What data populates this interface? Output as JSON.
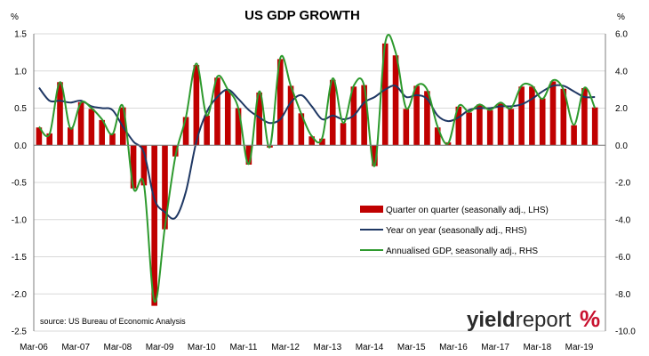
{
  "chart_data": {
    "type": "bar",
    "title": "US GDP GROWTH",
    "left_unit": "%",
    "right_unit": "%",
    "x_ticks": [
      "Mar-06",
      "Mar-07",
      "Mar-08",
      "Mar-09",
      "Mar-10",
      "Mar-11",
      "Mar-12",
      "Mar-13",
      "Mar-14",
      "Mar-15",
      "Mar-16",
      "Mar-17",
      "Mar-18",
      "Mar-19"
    ],
    "x_start_quarter": "Mar-06",
    "ylim_left": [
      -2.5,
      1.5
    ],
    "yticks_left": [
      "1.5",
      "1.0",
      "0.5",
      "0.0",
      "-0.5",
      "-1.0",
      "-1.5",
      "-2.0",
      "-2.5"
    ],
    "ylim_right": [
      -10.0,
      6.0
    ],
    "yticks_right": [
      "6.0",
      "4.0",
      "2.0",
      "0.0",
      "-2.0",
      "-4.0",
      "-6.0",
      "-8.0",
      "-10.0"
    ],
    "grid": "horizontal",
    "legend_placement": "center-right",
    "source": "source: US Bureau of Economic Analysis",
    "logo": {
      "part1": "yield",
      "part2": "report",
      "pct": "%",
      "pct_color": "#c8102e"
    },
    "colors": {
      "bar": "#c00000",
      "yoy": "#1f3864",
      "annualised": "#2e9a2e",
      "grid": "#d9d9d9"
    },
    "series": [
      {
        "name": "Quarter on quarter (seasonally adj., LHS)",
        "axis": "left",
        "kind": "bar",
        "values": [
          0.24,
          0.16,
          0.85,
          0.24,
          0.58,
          0.49,
          0.34,
          0.16,
          0.51,
          -0.58,
          -0.54,
          -2.16,
          -1.13,
          -0.15,
          0.38,
          1.08,
          0.4,
          0.91,
          0.74,
          0.5,
          -0.26,
          0.71,
          -0.03,
          1.16,
          0.8,
          0.43,
          0.12,
          0.09,
          0.88,
          0.3,
          0.79,
          0.81,
          -0.28,
          1.37,
          1.21,
          0.49,
          0.8,
          0.73,
          0.24,
          0.04,
          0.52,
          0.44,
          0.55,
          0.47,
          0.56,
          0.49,
          0.79,
          0.79,
          0.63,
          0.86,
          0.76,
          0.27,
          0.77,
          0.51
        ]
      },
      {
        "name": "Year on year (seasonally adj., RHS)",
        "axis": "right",
        "kind": "line",
        "values": [
          3.1,
          2.4,
          2.4,
          2.3,
          2.4,
          2.1,
          2.0,
          1.9,
          1.0,
          0.2,
          -0.4,
          -2.9,
          -3.6,
          -3.9,
          -2.5,
          0.2,
          1.8,
          2.6,
          3.0,
          2.5,
          1.9,
          1.5,
          1.2,
          1.4,
          2.3,
          2.7,
          2.1,
          1.4,
          1.6,
          1.4,
          1.6,
          2.3,
          2.6,
          3.0,
          3.2,
          2.6,
          2.7,
          2.5,
          1.6,
          1.3,
          1.5,
          1.9,
          2.0,
          2.0,
          2.1,
          2.1,
          2.2,
          2.5,
          2.9,
          3.2,
          3.2,
          2.9,
          2.6,
          2.6
        ]
      },
      {
        "name": "Annualised GDP, seasonally adj., RHS",
        "axis": "right",
        "kind": "line",
        "values": [
          1.0,
          0.6,
          3.4,
          0.9,
          2.3,
          2.0,
          1.4,
          0.6,
          2.1,
          -2.3,
          -2.1,
          -8.4,
          -4.4,
          -0.6,
          1.5,
          4.4,
          1.6,
          3.7,
          3.0,
          2.0,
          -1.0,
          2.9,
          -0.1,
          4.7,
          3.2,
          1.7,
          0.5,
          0.4,
          3.6,
          1.2,
          3.2,
          3.2,
          -1.1,
          5.5,
          5.0,
          2.0,
          3.2,
          3.0,
          1.0,
          0.1,
          2.1,
          1.8,
          2.2,
          1.9,
          2.3,
          2.0,
          3.2,
          3.2,
          2.5,
          3.5,
          3.0,
          1.1,
          3.1,
          2.0
        ]
      }
    ]
  }
}
